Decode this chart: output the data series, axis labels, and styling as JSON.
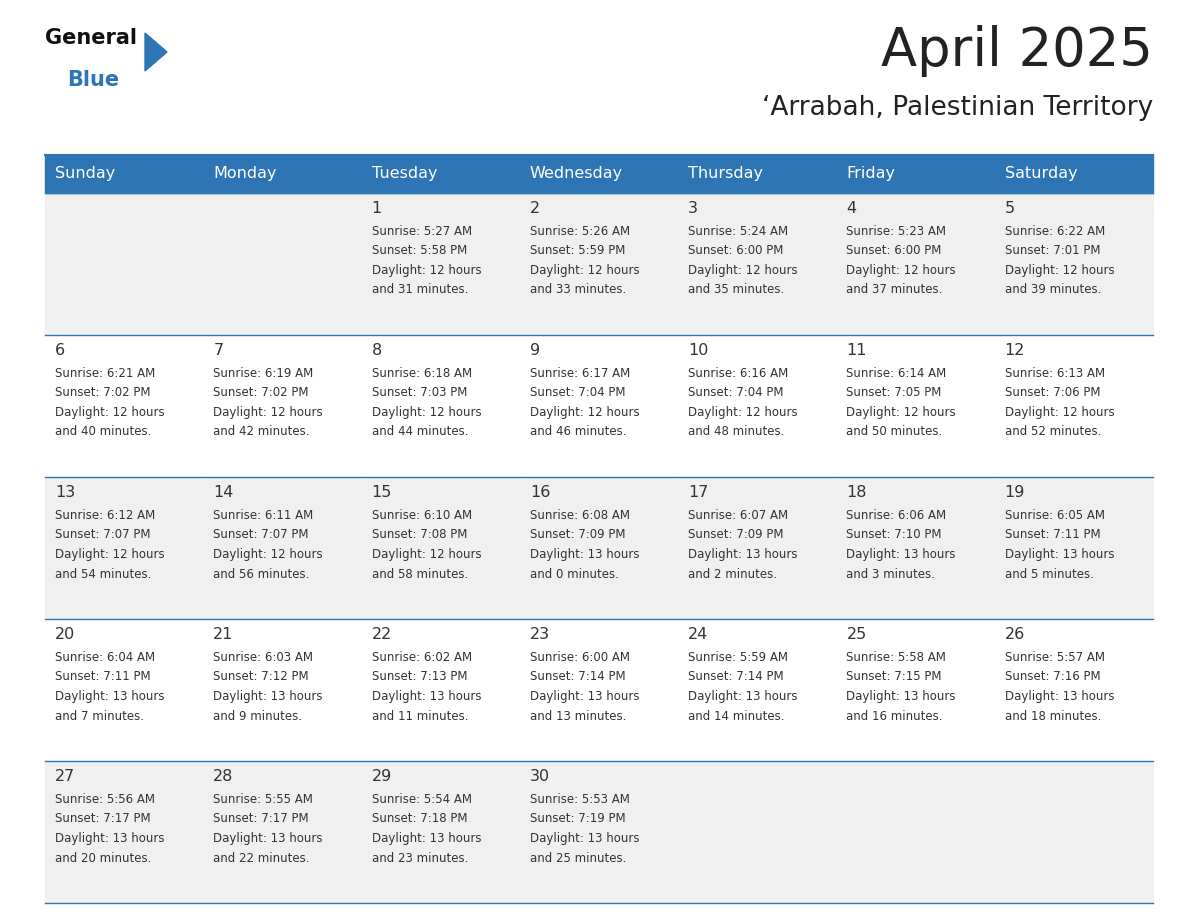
{
  "title": "April 2025",
  "subtitle": "‘Arrabah, Palestinian Territory",
  "header_bg": "#2e75b6",
  "header_text_color": "#ffffff",
  "days_of_week": [
    "Sunday",
    "Monday",
    "Tuesday",
    "Wednesday",
    "Thursday",
    "Friday",
    "Saturday"
  ],
  "bg_color": "#ffffff",
  "cell_bg_even": "#f0f0f0",
  "cell_bg_odd": "#ffffff",
  "border_color": "#2e75b6",
  "text_color": "#333333",
  "title_color": "#222222",
  "logo_black": "#111111",
  "logo_blue": "#2e75b6",
  "calendar": [
    [
      {
        "day": "",
        "sunrise": "",
        "sunset": "",
        "daylight": ""
      },
      {
        "day": "",
        "sunrise": "",
        "sunset": "",
        "daylight": ""
      },
      {
        "day": "1",
        "sunrise": "5:27 AM",
        "sunset": "5:58 PM",
        "daylight": "12 hours and 31 minutes."
      },
      {
        "day": "2",
        "sunrise": "5:26 AM",
        "sunset": "5:59 PM",
        "daylight": "12 hours and 33 minutes."
      },
      {
        "day": "3",
        "sunrise": "5:24 AM",
        "sunset": "6:00 PM",
        "daylight": "12 hours and 35 minutes."
      },
      {
        "day": "4",
        "sunrise": "5:23 AM",
        "sunset": "6:00 PM",
        "daylight": "12 hours and 37 minutes."
      },
      {
        "day": "5",
        "sunrise": "6:22 AM",
        "sunset": "7:01 PM",
        "daylight": "12 hours and 39 minutes."
      }
    ],
    [
      {
        "day": "6",
        "sunrise": "6:21 AM",
        "sunset": "7:02 PM",
        "daylight": "12 hours and 40 minutes."
      },
      {
        "day": "7",
        "sunrise": "6:19 AM",
        "sunset": "7:02 PM",
        "daylight": "12 hours and 42 minutes."
      },
      {
        "day": "8",
        "sunrise": "6:18 AM",
        "sunset": "7:03 PM",
        "daylight": "12 hours and 44 minutes."
      },
      {
        "day": "9",
        "sunrise": "6:17 AM",
        "sunset": "7:04 PM",
        "daylight": "12 hours and 46 minutes."
      },
      {
        "day": "10",
        "sunrise": "6:16 AM",
        "sunset": "7:04 PM",
        "daylight": "12 hours and 48 minutes."
      },
      {
        "day": "11",
        "sunrise": "6:14 AM",
        "sunset": "7:05 PM",
        "daylight": "12 hours and 50 minutes."
      },
      {
        "day": "12",
        "sunrise": "6:13 AM",
        "sunset": "7:06 PM",
        "daylight": "12 hours and 52 minutes."
      }
    ],
    [
      {
        "day": "13",
        "sunrise": "6:12 AM",
        "sunset": "7:07 PM",
        "daylight": "12 hours and 54 minutes."
      },
      {
        "day": "14",
        "sunrise": "6:11 AM",
        "sunset": "7:07 PM",
        "daylight": "12 hours and 56 minutes."
      },
      {
        "day": "15",
        "sunrise": "6:10 AM",
        "sunset": "7:08 PM",
        "daylight": "12 hours and 58 minutes."
      },
      {
        "day": "16",
        "sunrise": "6:08 AM",
        "sunset": "7:09 PM",
        "daylight": "13 hours and 0 minutes."
      },
      {
        "day": "17",
        "sunrise": "6:07 AM",
        "sunset": "7:09 PM",
        "daylight": "13 hours and 2 minutes."
      },
      {
        "day": "18",
        "sunrise": "6:06 AM",
        "sunset": "7:10 PM",
        "daylight": "13 hours and 3 minutes."
      },
      {
        "day": "19",
        "sunrise": "6:05 AM",
        "sunset": "7:11 PM",
        "daylight": "13 hours and 5 minutes."
      }
    ],
    [
      {
        "day": "20",
        "sunrise": "6:04 AM",
        "sunset": "7:11 PM",
        "daylight": "13 hours and 7 minutes."
      },
      {
        "day": "21",
        "sunrise": "6:03 AM",
        "sunset": "7:12 PM",
        "daylight": "13 hours and 9 minutes."
      },
      {
        "day": "22",
        "sunrise": "6:02 AM",
        "sunset": "7:13 PM",
        "daylight": "13 hours and 11 minutes."
      },
      {
        "day": "23",
        "sunrise": "6:00 AM",
        "sunset": "7:14 PM",
        "daylight": "13 hours and 13 minutes."
      },
      {
        "day": "24",
        "sunrise": "5:59 AM",
        "sunset": "7:14 PM",
        "daylight": "13 hours and 14 minutes."
      },
      {
        "day": "25",
        "sunrise": "5:58 AM",
        "sunset": "7:15 PM",
        "daylight": "13 hours and 16 minutes."
      },
      {
        "day": "26",
        "sunrise": "5:57 AM",
        "sunset": "7:16 PM",
        "daylight": "13 hours and 18 minutes."
      }
    ],
    [
      {
        "day": "27",
        "sunrise": "5:56 AM",
        "sunset": "7:17 PM",
        "daylight": "13 hours and 20 minutes."
      },
      {
        "day": "28",
        "sunrise": "5:55 AM",
        "sunset": "7:17 PM",
        "daylight": "13 hours and 22 minutes."
      },
      {
        "day": "29",
        "sunrise": "5:54 AM",
        "sunset": "7:18 PM",
        "daylight": "13 hours and 23 minutes."
      },
      {
        "day": "30",
        "sunrise": "5:53 AM",
        "sunset": "7:19 PM",
        "daylight": "13 hours and 25 minutes."
      },
      {
        "day": "",
        "sunrise": "",
        "sunset": "",
        "daylight": ""
      },
      {
        "day": "",
        "sunrise": "",
        "sunset": "",
        "daylight": ""
      },
      {
        "day": "",
        "sunrise": "",
        "sunset": "",
        "daylight": ""
      }
    ]
  ]
}
